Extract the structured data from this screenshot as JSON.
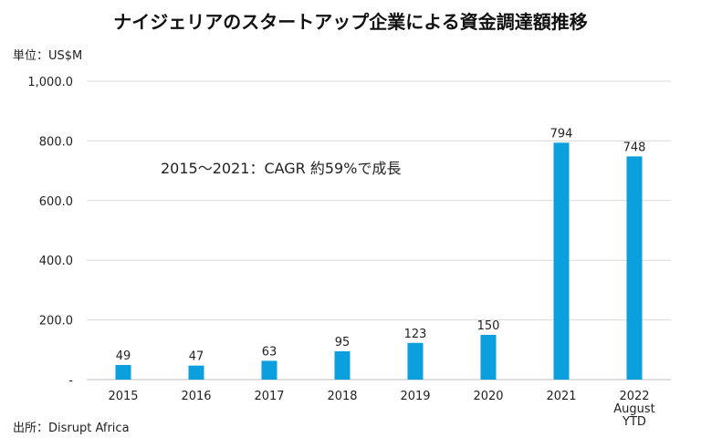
{
  "chart_data": {
    "type": "bar",
    "title": "ナイジェリアのスタートアップ企業による資金調達額推移",
    "unit": "単位：US$M",
    "categories": [
      [
        "2015"
      ],
      [
        "2016"
      ],
      [
        "2017"
      ],
      [
        "2018"
      ],
      [
        "2019"
      ],
      [
        "2020"
      ],
      [
        "2021"
      ],
      [
        "2022",
        "August",
        "YTD"
      ]
    ],
    "values": [
      49,
      47,
      63,
      95,
      123,
      150,
      794,
      748
    ],
    "data_labels": [
      "49",
      "47",
      "63",
      "95",
      "123",
      "150",
      "794",
      "748"
    ],
    "ylim": [
      0,
      1000
    ],
    "yticks": [
      {
        "value": 0,
        "label": "-"
      },
      {
        "value": 200,
        "label": "200.0"
      },
      {
        "value": 400,
        "label": "400.0"
      },
      {
        "value": 600,
        "label": "600.0"
      },
      {
        "value": 800,
        "label": "800.0"
      },
      {
        "value": 1000,
        "label": "1,000.0"
      }
    ],
    "annotation": "2015～2021：CAGR 約59%で成長",
    "bar_color": "#0b9fe0",
    "grid": true,
    "source": "出所：Disrupt Africa"
  }
}
